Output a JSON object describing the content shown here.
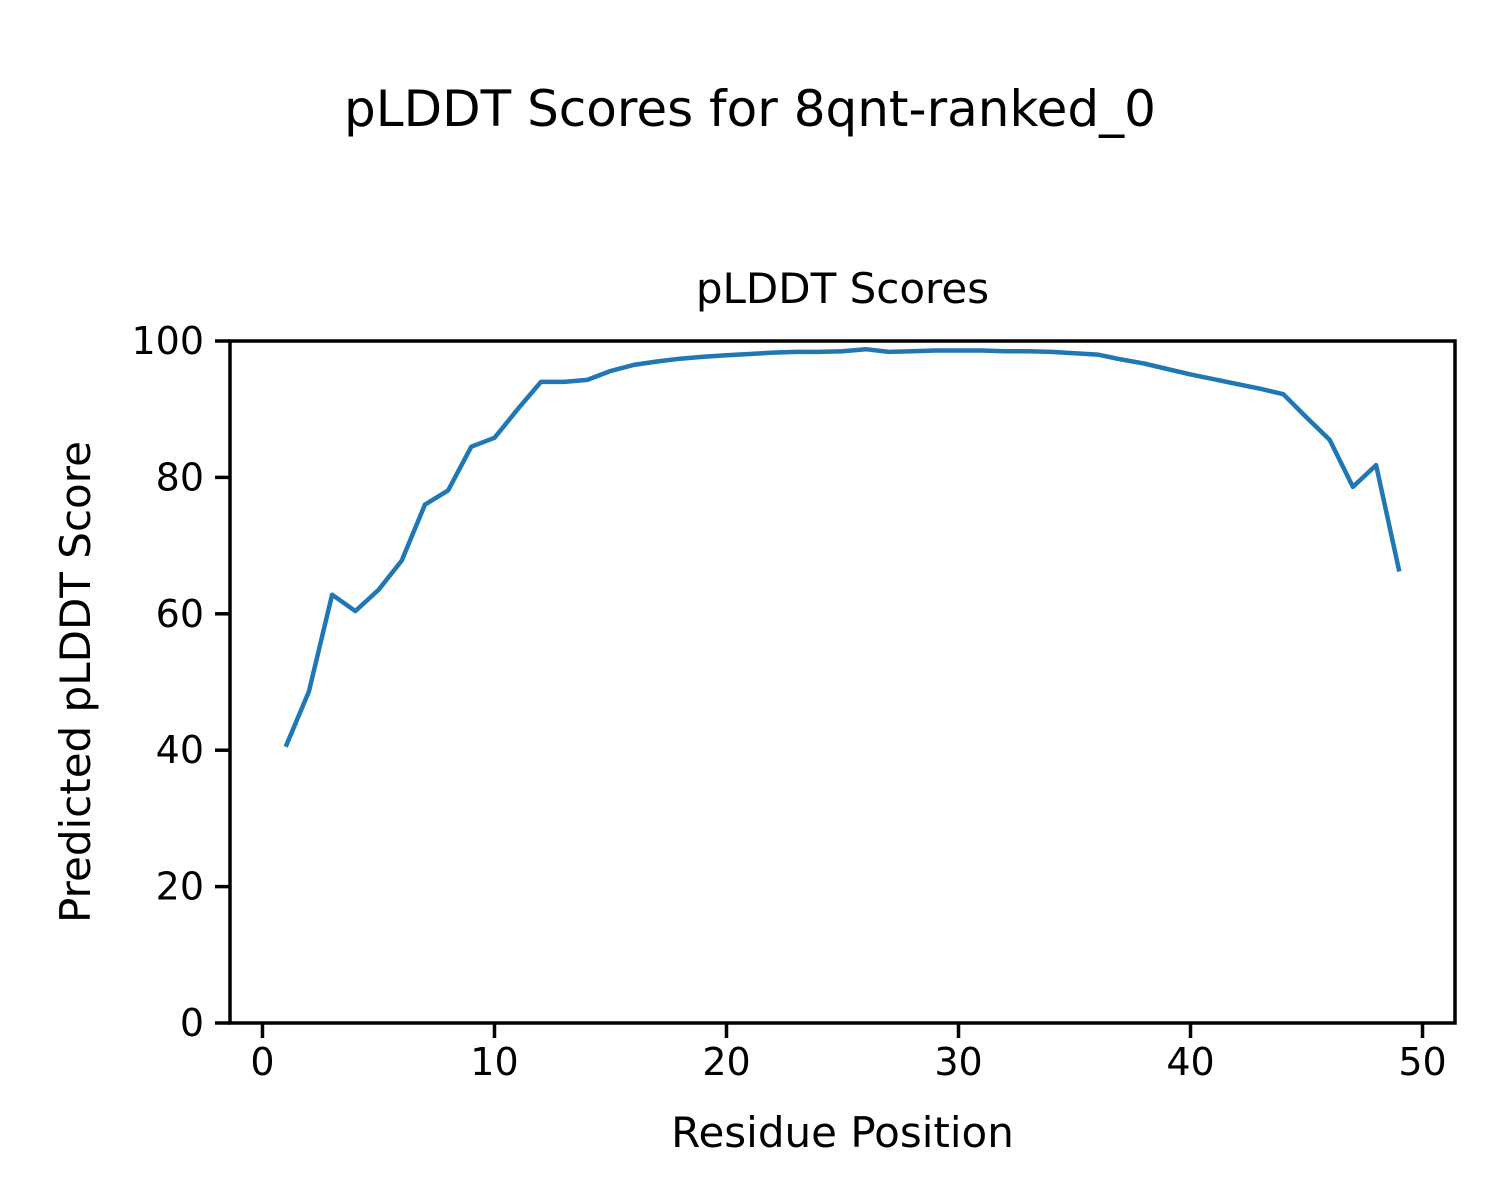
{
  "figure": {
    "suptitle": "pLDDT Scores for 8qnt-ranked_0",
    "background_color": "#ffffff",
    "text_color": "#000000"
  },
  "chart_data": {
    "type": "line",
    "title": "pLDDT Scores",
    "xlabel": "Residue Position",
    "ylabel": "Predicted pLDDT Score",
    "x": [
      1,
      2,
      3,
      4,
      5,
      6,
      7,
      8,
      9,
      10,
      11,
      12,
      13,
      14,
      15,
      16,
      17,
      18,
      19,
      20,
      21,
      22,
      23,
      24,
      25,
      26,
      27,
      28,
      29,
      30,
      31,
      32,
      33,
      34,
      35,
      36,
      37,
      38,
      39,
      40,
      41,
      42,
      43,
      44,
      45,
      46,
      47,
      48,
      49
    ],
    "y": [
      40.5,
      48.6,
      62.8,
      60.4,
      63.5,
      67.8,
      76.0,
      78.1,
      84.5,
      85.8,
      90.0,
      94.0,
      94.0,
      94.3,
      95.6,
      96.5,
      97.0,
      97.4,
      97.7,
      97.9,
      98.1,
      98.3,
      98.4,
      98.4,
      98.5,
      98.8,
      98.4,
      98.5,
      98.6,
      98.6,
      98.6,
      98.5,
      98.5,
      98.4,
      98.2,
      98.0,
      97.3,
      96.7,
      95.9,
      95.1,
      94.4,
      93.7,
      93.0,
      92.2,
      88.8,
      85.5,
      78.6,
      81.8,
      66.2
    ],
    "xlim": [
      -1.4,
      51.4
    ],
    "ylim": [
      0,
      100
    ],
    "xticks": [
      0,
      10,
      20,
      30,
      40,
      50
    ],
    "yticks": [
      0,
      20,
      40,
      60,
      80,
      100
    ],
    "line_color": "#1f77b4",
    "grid": false,
    "legend": "none"
  }
}
